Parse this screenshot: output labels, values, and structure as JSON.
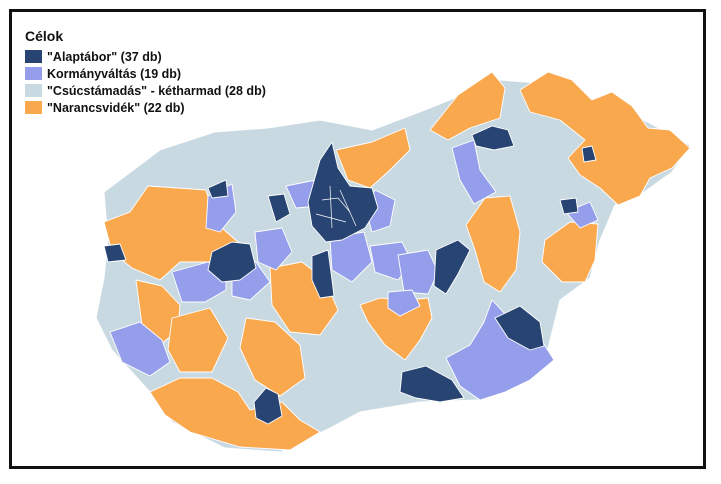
{
  "legend": {
    "title": "Célok",
    "items": [
      {
        "key": "alaptabor",
        "label": "\"Alaptábor\" (37 db)",
        "color": "#274472"
      },
      {
        "key": "kormanyvaltas",
        "label": "Kormányváltás (19 db)",
        "color": "#959EEA"
      },
      {
        "key": "csucstamadas",
        "label": "\"Csúcstámadás\" - kétharmad (28 db)",
        "color": "#C9D9E2"
      },
      {
        "key": "narancsvidek",
        "label": "\"Narancsvidék\" (22 db)",
        "color": "#F9A84E"
      }
    ]
  }
}
